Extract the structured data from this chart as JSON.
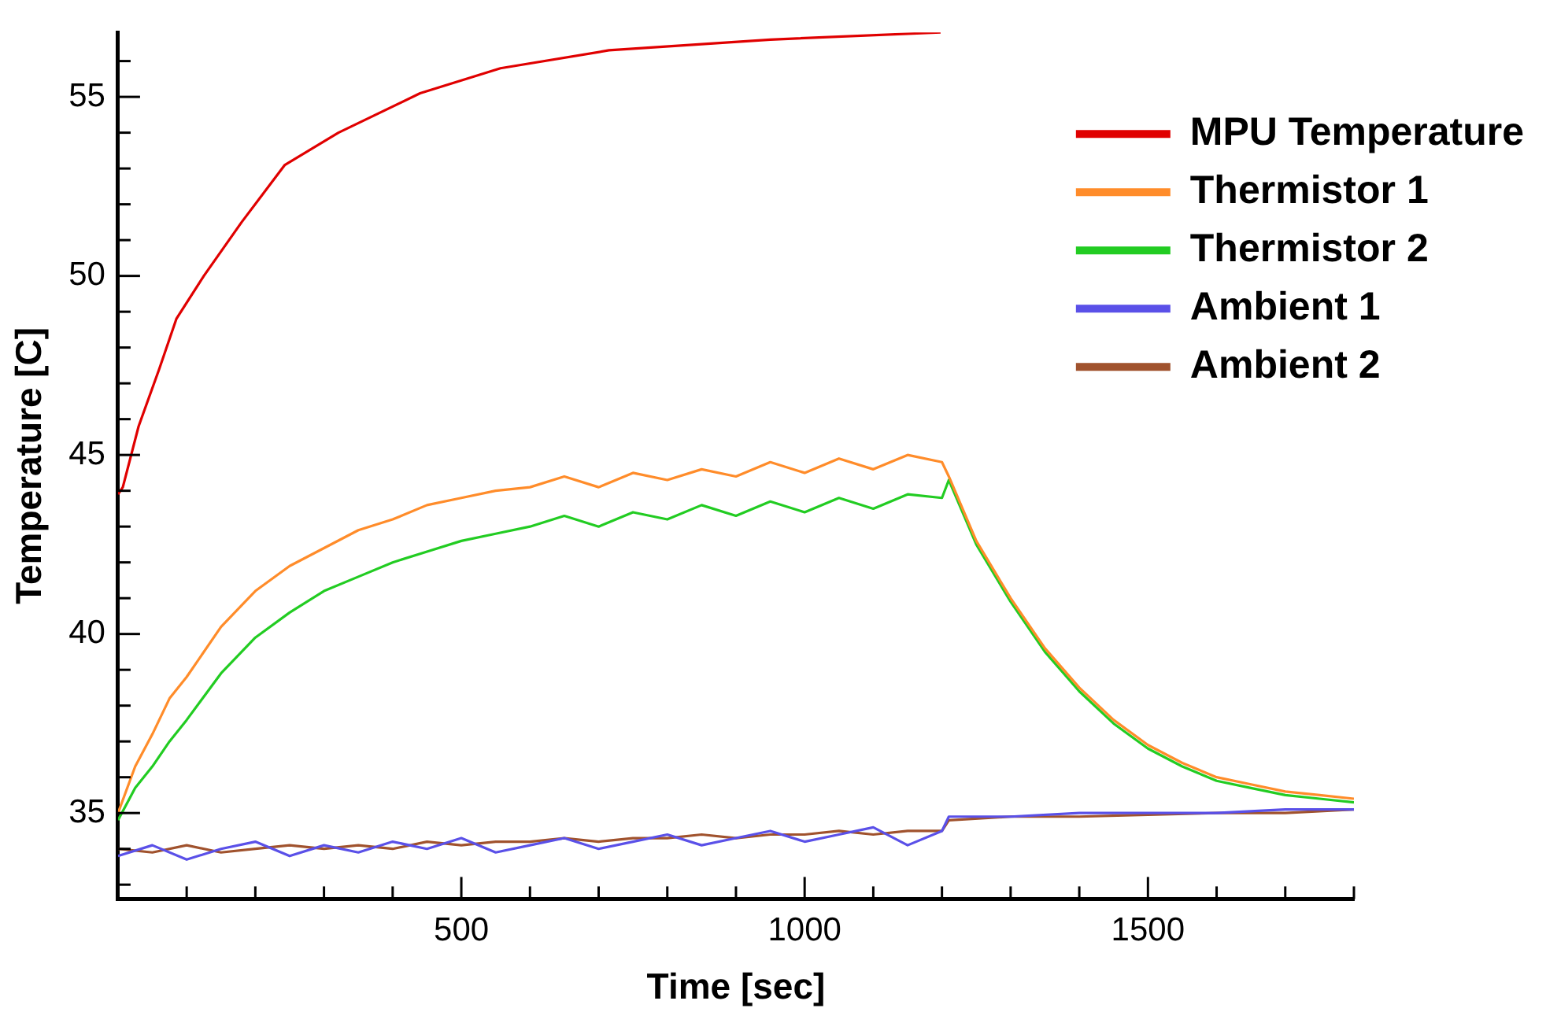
{
  "chart_data": {
    "type": "line",
    "xlabel": "Time [sec]",
    "ylabel": "Temperature [C]",
    "xlim": [
      0,
      1800
    ],
    "ylim": [
      32.6,
      56.8
    ],
    "xticks": [
      {
        "value": 100,
        "label": null
      },
      {
        "value": 200,
        "label": null
      },
      {
        "value": 300,
        "label": null
      },
      {
        "value": 400,
        "label": null
      },
      500,
      {
        "value": 600,
        "label": null
      },
      {
        "value": 700,
        "label": null
      },
      {
        "value": 800,
        "label": null
      },
      {
        "value": 900,
        "label": null
      },
      1000,
      {
        "value": 1100,
        "label": null
      },
      {
        "value": 1200,
        "label": null
      },
      {
        "value": 1300,
        "label": null
      },
      {
        "value": 1400,
        "label": null
      },
      1500,
      {
        "value": 1600,
        "label": null
      },
      {
        "value": 1700,
        "label": null
      },
      {
        "value": 1800,
        "label": null
      }
    ],
    "yticks": [
      {
        "value": 33,
        "label": null
      },
      {
        "value": 34,
        "label": null
      },
      35,
      {
        "value": 36,
        "label": null
      },
      {
        "value": 37,
        "label": null
      },
      {
        "value": 38,
        "label": null
      },
      {
        "value": 39,
        "label": null
      },
      40,
      {
        "value": 41,
        "label": null
      },
      {
        "value": 42,
        "label": null
      },
      {
        "value": 43,
        "label": null
      },
      {
        "value": 44,
        "label": null
      },
      45,
      {
        "value": 46,
        "label": null
      },
      {
        "value": 47,
        "label": null
      },
      {
        "value": 48,
        "label": null
      },
      {
        "value": 49,
        "label": null
      },
      50,
      {
        "value": 51,
        "label": null
      },
      {
        "value": 52,
        "label": null
      },
      {
        "value": 53,
        "label": null
      },
      {
        "value": 54,
        "label": null
      },
      55,
      {
        "value": 56,
        "label": null
      }
    ],
    "grid": false,
    "legend": "top right",
    "marker": "none",
    "line_style": "solid",
    "series": [
      {
        "name": "MPU Temperature",
        "color": "#e00000",
        "x": [
          0,
          7,
          30,
          60,
          85,
          125,
          180,
          243,
          321,
          440,
          557,
          715,
          950,
          1198
        ],
        "values": [
          43.9,
          44.1,
          45.8,
          47.4,
          48.8,
          50.0,
          51.5,
          53.1,
          54.0,
          55.1,
          55.8,
          56.3,
          56.6,
          56.8
        ]
      },
      {
        "name": "Thermistor 1",
        "color": "#ff8c2a",
        "x": [
          0,
          25,
          50,
          75,
          100,
          150,
          200,
          250,
          300,
          350,
          400,
          450,
          500,
          550,
          600,
          650,
          700,
          750,
          800,
          850,
          900,
          950,
          1000,
          1050,
          1100,
          1150,
          1200,
          1210,
          1250,
          1300,
          1350,
          1400,
          1450,
          1500,
          1550,
          1600,
          1650,
          1700,
          1750,
          1800
        ],
        "values": [
          35.0,
          36.3,
          37.2,
          38.2,
          38.8,
          40.2,
          41.2,
          41.9,
          42.4,
          42.9,
          43.2,
          43.6,
          43.8,
          44.0,
          44.1,
          44.4,
          44.1,
          44.5,
          44.3,
          44.6,
          44.4,
          44.8,
          44.5,
          44.9,
          44.6,
          45.0,
          44.8,
          44.4,
          42.6,
          41.0,
          39.6,
          38.5,
          37.6,
          36.9,
          36.4,
          36.0,
          35.8,
          35.6,
          35.5,
          35.4
        ]
      },
      {
        "name": "Thermistor 2",
        "color": "#22cc22",
        "x": [
          0,
          25,
          50,
          75,
          100,
          150,
          200,
          250,
          300,
          350,
          400,
          450,
          500,
          550,
          600,
          650,
          700,
          750,
          800,
          850,
          900,
          950,
          1000,
          1050,
          1100,
          1150,
          1200,
          1210,
          1250,
          1300,
          1350,
          1400,
          1450,
          1500,
          1550,
          1600,
          1650,
          1700,
          1750,
          1800
        ],
        "values": [
          34.8,
          35.7,
          36.3,
          37.0,
          37.6,
          38.9,
          39.9,
          40.6,
          41.2,
          41.6,
          42.0,
          42.3,
          42.6,
          42.8,
          43.0,
          43.3,
          43.0,
          43.4,
          43.2,
          43.6,
          43.3,
          43.7,
          43.4,
          43.8,
          43.5,
          43.9,
          43.8,
          44.3,
          42.5,
          40.9,
          39.5,
          38.4,
          37.5,
          36.8,
          36.3,
          35.9,
          35.7,
          35.5,
          35.4,
          35.3
        ]
      },
      {
        "name": "Ambient 1",
        "color": "#5a50e8",
        "x": [
          0,
          50,
          100,
          150,
          200,
          250,
          300,
          350,
          400,
          450,
          500,
          550,
          600,
          650,
          700,
          750,
          800,
          850,
          900,
          950,
          1000,
          1050,
          1100,
          1150,
          1200,
          1210,
          1300,
          1400,
          1500,
          1600,
          1700,
          1800
        ],
        "values": [
          33.8,
          34.1,
          33.7,
          34.0,
          34.2,
          33.8,
          34.1,
          33.9,
          34.2,
          34.0,
          34.3,
          33.9,
          34.1,
          34.3,
          34.0,
          34.2,
          34.4,
          34.1,
          34.3,
          34.5,
          34.2,
          34.4,
          34.6,
          34.1,
          34.5,
          34.9,
          34.9,
          35.0,
          35.0,
          35.0,
          35.1,
          35.1
        ]
      },
      {
        "name": "Ambient 2",
        "color": "#a0522d",
        "x": [
          0,
          50,
          100,
          150,
          200,
          250,
          300,
          350,
          400,
          450,
          500,
          550,
          600,
          650,
          700,
          750,
          800,
          850,
          900,
          950,
          1000,
          1050,
          1100,
          1150,
          1200,
          1210,
          1300,
          1400,
          1500,
          1600,
          1700,
          1800
        ],
        "values": [
          34.0,
          33.9,
          34.1,
          33.9,
          34.0,
          34.1,
          34.0,
          34.1,
          34.0,
          34.2,
          34.1,
          34.2,
          34.2,
          34.3,
          34.2,
          34.3,
          34.3,
          34.4,
          34.3,
          34.4,
          34.4,
          34.5,
          34.4,
          34.5,
          34.5,
          34.8,
          34.9,
          34.9,
          34.95,
          35.0,
          35.0,
          35.1
        ]
      }
    ]
  }
}
